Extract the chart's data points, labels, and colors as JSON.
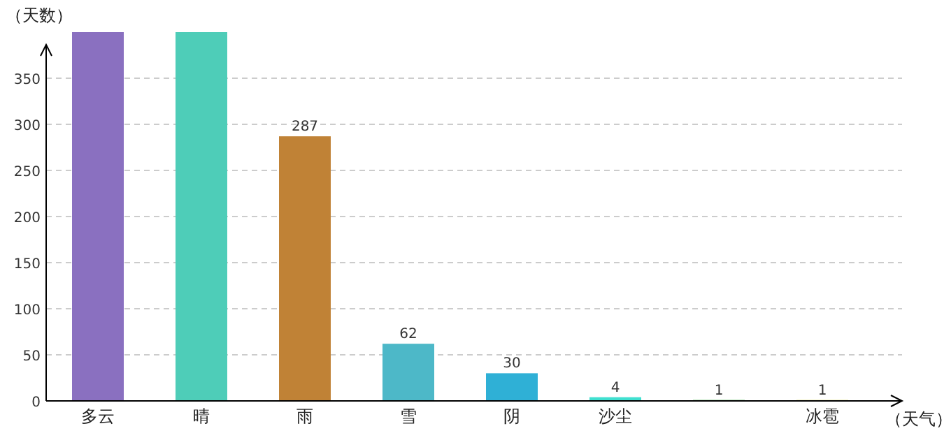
{
  "chart_data": {
    "type": "bar",
    "ylabel": "（天数）",
    "xlabel": "（天气）",
    "categories": [
      "多云",
      "晴",
      "雨",
      "雪",
      "阴",
      "沙尘",
      null,
      "冰雹"
    ],
    "values": [
      400,
      400,
      287,
      62,
      30,
      4,
      1,
      1
    ],
    "colors": [
      "#8a70c0",
      "#4ecdb8",
      "#c08236",
      "#4db8c8",
      "#2fb0d6",
      "#40e0d0",
      "#3cb043",
      "#e0e060"
    ],
    "value_labels": [
      null,
      null,
      "287",
      "62",
      "30",
      "4",
      "1",
      "1"
    ],
    "ylim": [
      0,
      400
    ],
    "yticks": [
      0,
      50,
      100,
      150,
      200,
      250,
      300,
      350
    ],
    "grid": "y"
  }
}
